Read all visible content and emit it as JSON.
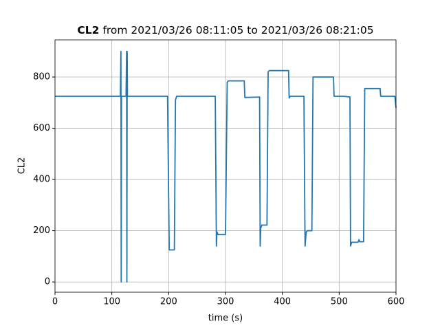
{
  "chart_data": {
    "type": "line",
    "title": [
      "CL2",
      "from 2021/03/26 08:11:05 to 2021/03/26 08:21:05"
    ],
    "xlabel": "time (s)",
    "ylabel": "CL2",
    "x": [
      0,
      115,
      116,
      116.5,
      117,
      125,
      126,
      126.5,
      127,
      127.5,
      198,
      201,
      210,
      212,
      214,
      282,
      284,
      285,
      287,
      300,
      303,
      305,
      333,
      334,
      360,
      361,
      362,
      364,
      373,
      375,
      377,
      411,
      412,
      414,
      438,
      440,
      442,
      444,
      452,
      454,
      490,
      491,
      508,
      519,
      520,
      522,
      533,
      535,
      536,
      543,
      545,
      572,
      573,
      598,
      600
    ],
    "series": [
      {
        "name": "CL2",
        "color": "#1f77b4",
        "values": [
          725,
          725,
          900,
          0,
          725,
          725,
          900,
          0,
          900,
          725,
          725,
          125,
          125,
          710,
          725,
          725,
          140,
          195,
          185,
          185,
          780,
          785,
          785,
          720,
          722,
          140,
          210,
          222,
          222,
          820,
          825,
          825,
          718,
          725,
          725,
          140,
          195,
          200,
          200,
          800,
          800,
          725,
          725,
          722,
          140,
          155,
          155,
          165,
          157,
          157,
          755,
          755,
          725,
          725,
          680
        ]
      }
    ],
    "xlim": [
      0,
      600
    ],
    "xticks": [
      0,
      100,
      200,
      300,
      400,
      500,
      600
    ],
    "ylim": [
      -40,
      945
    ],
    "yticks": [
      0,
      200,
      400,
      600,
      800
    ],
    "grid": true
  }
}
